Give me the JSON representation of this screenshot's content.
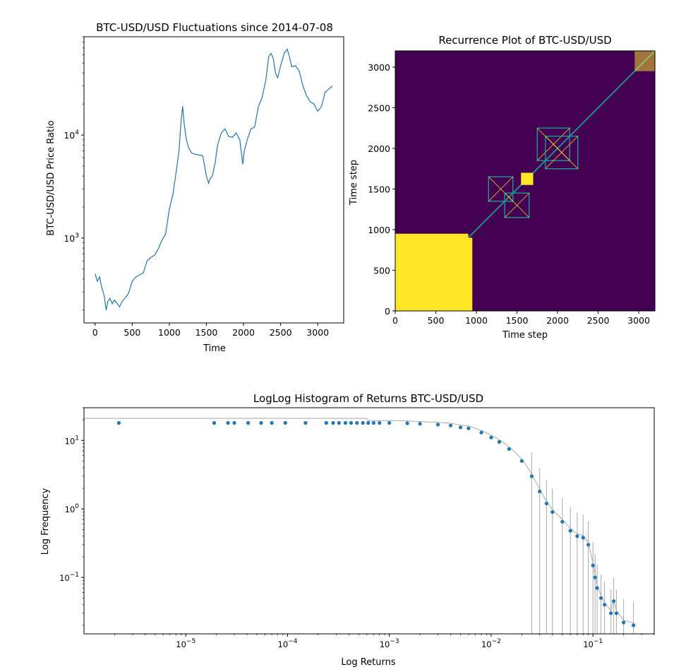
{
  "chart_data": [
    {
      "type": "line",
      "title": "BTC-USD/USD Fluctuations since 2014-07-08",
      "xlabel": "Time",
      "ylabel": "BTC-USD/USD Price Ratio",
      "xlim": [
        -150,
        3350
      ],
      "ylim": [
        150,
        90000
      ],
      "yscale": "log",
      "x_ticks": [
        0,
        500,
        1000,
        1500,
        2000,
        2500,
        3000
      ],
      "y_ticks": [
        {
          "value": 1000,
          "label": "10^3"
        },
        {
          "value": 10000,
          "label": "10^4"
        }
      ],
      "line_color": "#1f77b4",
      "grid": false,
      "series": [
        {
          "x": [
            0,
            30,
            60,
            90,
            120,
            150,
            170,
            200,
            230,
            260,
            300,
            330,
            360,
            400,
            450,
            500,
            550,
            600,
            650,
            700,
            750,
            800,
            850,
            900,
            950,
            1000,
            1050,
            1100,
            1130,
            1160,
            1180,
            1200,
            1230,
            1260,
            1300,
            1350,
            1400,
            1450,
            1500,
            1530,
            1550,
            1580,
            1620,
            1650,
            1700,
            1750,
            1800,
            1850,
            1900,
            1950,
            1990,
            2010,
            2050,
            2100,
            2150,
            2200,
            2250,
            2300,
            2340,
            2370,
            2400,
            2430,
            2460,
            2500,
            2550,
            2590,
            2620,
            2650,
            2700,
            2750,
            2800,
            2850,
            2900,
            2950,
            3000,
            3050,
            3100,
            3150,
            3200
          ],
          "y": [
            450,
            380,
            420,
            330,
            280,
            200,
            240,
            260,
            230,
            250,
            230,
            215,
            240,
            260,
            290,
            380,
            420,
            440,
            460,
            600,
            650,
            680,
            780,
            950,
            1100,
            1900,
            2700,
            4800,
            7000,
            14000,
            19000,
            13000,
            9000,
            7500,
            6700,
            6500,
            6400,
            6300,
            4000,
            3400,
            3800,
            4000,
            5500,
            8000,
            10500,
            11500,
            9700,
            9500,
            10500,
            9000,
            5200,
            7000,
            9000,
            11500,
            12000,
            19000,
            23000,
            34000,
            58000,
            62000,
            56000,
            40000,
            36000,
            47000,
            63000,
            68000,
            57000,
            46000,
            47000,
            42000,
            30000,
            24000,
            21000,
            20000,
            17000,
            19000,
            26000,
            28000,
            30000
          ]
        }
      ]
    },
    {
      "type": "heatmap",
      "title": "Recurrence Plot of BTC-USD/USD",
      "xlabel": "Time step",
      "ylabel": "Time step",
      "xlim": [
        0,
        3200
      ],
      "ylim": [
        0,
        3200
      ],
      "x_ticks": [
        0,
        500,
        1000,
        1500,
        2000,
        2500,
        3000
      ],
      "y_ticks": [
        0,
        500,
        1000,
        1500,
        2000,
        2500,
        3000
      ],
      "background_color": "#440154",
      "recurrence_color": "#fde725",
      "mid_color": "#21908d",
      "blocks": [
        {
          "x": [
            0,
            900
          ],
          "y": [
            0,
            950
          ]
        },
        {
          "x": [
            0,
            950
          ],
          "y": [
            0,
            900
          ]
        },
        {
          "x": [
            1550,
            1700
          ],
          "y": [
            1550,
            1700
          ]
        },
        {
          "x": [
            1150,
            1450
          ],
          "y": [
            1350,
            1650
          ]
        },
        {
          "x": [
            1350,
            1650
          ],
          "y": [
            1150,
            1450
          ]
        },
        {
          "x": [
            1750,
            2150
          ],
          "y": [
            1850,
            2250
          ]
        },
        {
          "x": [
            1850,
            2250
          ],
          "y": [
            1750,
            2150
          ]
        },
        {
          "x": [
            2950,
            3200
          ],
          "y": [
            2950,
            3200
          ]
        }
      ]
    },
    {
      "type": "scatter",
      "title": "LogLog Histogram of Returns BTC-USD/USD",
      "xlabel": "Log Returns",
      "ylabel": "Log Frequency",
      "xscale": "log",
      "yscale": "log",
      "xlim": [
        1e-06,
        0.4
      ],
      "ylim": [
        0.015,
        30
      ],
      "x_ticks": [
        {
          "value": 1e-05,
          "label": "10^-5"
        },
        {
          "value": 0.0001,
          "label": "10^-4"
        },
        {
          "value": 0.001,
          "label": "10^-3"
        },
        {
          "value": 0.01,
          "label": "10^-2"
        },
        {
          "value": 0.1,
          "label": "10^-1"
        }
      ],
      "y_ticks": [
        {
          "value": 0.1,
          "label": "10^-1"
        },
        {
          "value": 1,
          "label": "10^0"
        },
        {
          "value": 10,
          "label": "10^1"
        }
      ],
      "point_color": "#1f77b4",
      "histogram_color": "#aaaaaa",
      "grid": false,
      "series": [
        {
          "x": [
            2.2e-06,
            1.9e-05,
            2.6e-05,
            3e-05,
            4.1e-05,
            5.5e-05,
            7e-05,
            9.5e-05,
            0.00015,
            0.00024,
            0.00028,
            0.00032,
            0.00037,
            0.00042,
            0.00048,
            0.00055,
            0.00062,
            0.0007,
            0.0008,
            0.001,
            0.0015,
            0.002,
            0.003,
            0.004,
            0.005,
            0.006,
            0.008,
            0.01,
            0.012,
            0.015,
            0.02,
            0.025,
            0.03,
            0.035,
            0.04,
            0.05,
            0.06,
            0.07,
            0.08,
            0.09,
            0.1,
            0.105,
            0.11,
            0.12,
            0.13,
            0.15,
            0.16,
            0.17,
            0.2,
            0.25
          ],
          "y": [
            18,
            18,
            18,
            18,
            18,
            18,
            18,
            18,
            18,
            18,
            18,
            18,
            18,
            18,
            18,
            18,
            18,
            18,
            18,
            18,
            17.8,
            17.5,
            17,
            16.5,
            15.5,
            15,
            13,
            11,
            9.5,
            7.5,
            5,
            3,
            1.8,
            1.2,
            0.9,
            0.65,
            0.48,
            0.4,
            0.38,
            0.3,
            0.15,
            0.1,
            0.07,
            0.05,
            0.04,
            0.03,
            0.045,
            0.03,
            0.022,
            0.02
          ]
        }
      ]
    }
  ]
}
